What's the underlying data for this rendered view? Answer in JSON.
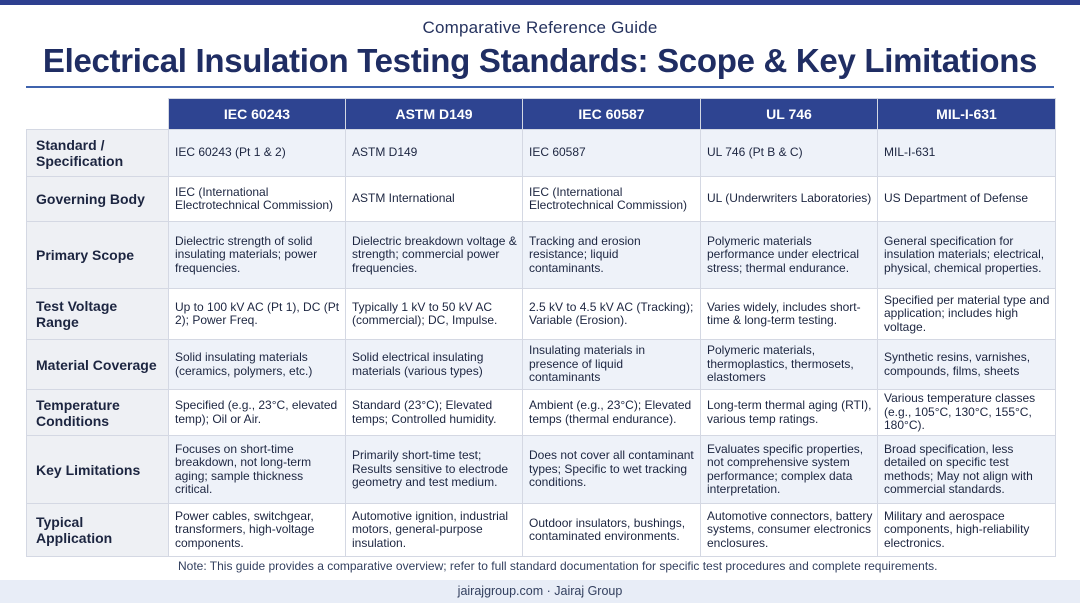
{
  "header": {
    "subtitle": "Comparative Reference Guide",
    "title": "Electrical Insulation Testing Standards: Scope & Key Limitations"
  },
  "table": {
    "columns": [
      "IEC 60243",
      "ASTM D149",
      "IEC 60587",
      "UL 746",
      "MIL-I-631"
    ],
    "rows": [
      {
        "label": "Standard / Specification",
        "cells": [
          "IEC 60243 (Pt 1 & 2)",
          "ASTM D149",
          "IEC 60587",
          "UL 746 (Pt B & C)",
          "MIL-I-631"
        ]
      },
      {
        "label": "Governing Body",
        "cells": [
          "IEC (International Electrotechnical Commission)",
          "ASTM International",
          "IEC (International Electrotechnical Commission)",
          "UL (Underwriters Laboratories)",
          "US Department of Defense"
        ]
      },
      {
        "label": "Primary Scope",
        "cells": [
          "Dielectric strength of solid insulating materials; power frequencies.",
          "Dielectric breakdown voltage & strength; commercial power frequencies.",
          "Tracking and erosion resistance; liquid contaminants.",
          "Polymeric materials performance under electrical stress; thermal endurance.",
          "General specification for insulation materials; electrical, physical, chemical properties."
        ]
      },
      {
        "label": "Test Voltage Range",
        "cells": [
          "Up to 100 kV AC (Pt 1), DC (Pt 2); Power Freq.",
          "Typically 1 kV to 50 kV AC (commercial); DC, Impulse.",
          "2.5 kV to 4.5 kV AC (Tracking); Variable (Erosion).",
          "Varies widely, includes short-time & long-term testing.",
          "Specified per material type and application; includes high voltage."
        ]
      },
      {
        "label": "Material Coverage",
        "cells": [
          "Solid insulating materials (ceramics, polymers, etc.)",
          "Solid electrical insulating materials (various types)",
          "Insulating materials in presence of liquid contaminants",
          "Polymeric materials, thermoplastics, thermosets, elastomers",
          "Synthetic resins, varnishes, compounds, films, sheets"
        ]
      },
      {
        "label": "Temperature Conditions",
        "cells": [
          "Specified (e.g., 23°C, elevated temp); Oil or Air.",
          "Standard (23°C); Elevated temps; Controlled humidity.",
          "Ambient (e.g., 23°C); Elevated temps (thermal endurance).",
          "Long-term thermal aging (RTI), various temp ratings.",
          "Various temperature classes (e.g., 105°C, 130°C, 155°C, 180°C)."
        ]
      },
      {
        "label": "Key Limitations",
        "cells": [
          "Focuses on short-time breakdown, not long-term aging; sample thickness critical.",
          "Primarily short-time test; Results sensitive to electrode geometry and test medium.",
          "Does not cover all contaminant types; Specific to wet tracking conditions.",
          "Evaluates specific properties, not comprehensive system performance; complex data interpretation.",
          "Broad specification, less detailed on specific test methods; May not align with commercial standards."
        ]
      },
      {
        "label": "Typical Application",
        "cells": [
          "Power cables, switchgear, transformers, high-voltage components.",
          "Automotive ignition, industrial motors, general-purpose insulation.",
          "Outdoor insulators, bushings, contaminated environments.",
          "Automotive connectors, battery systems, consumer electronics enclosures.",
          "Military and aerospace components, high-reliability electronics."
        ]
      }
    ]
  },
  "note": "Note: This guide provides a comparative overview; refer to full standard documentation for specific test procedures and complete requirements.",
  "footer": "jairajgroup.com · Jairaj Group",
  "colors": {
    "header_fill": "#2e4491",
    "title_text": "#1f2d63",
    "accent_rule": "#3f63ad",
    "alt_row": "#eef2f9",
    "row_label_fill": "#eef0f4",
    "footer_fill": "#e8edf7"
  }
}
